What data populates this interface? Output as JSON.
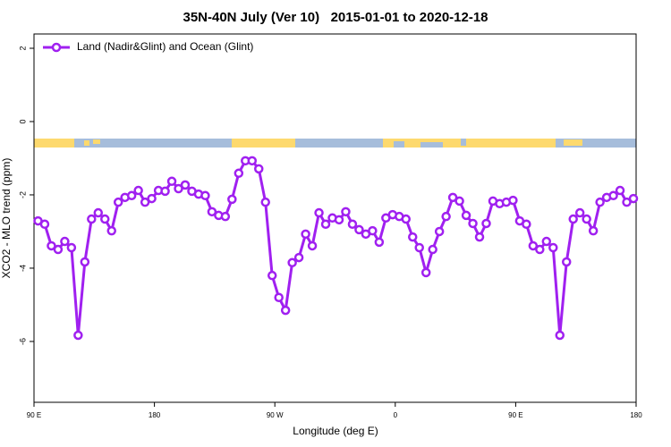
{
  "chart_data": {
    "type": "line",
    "title": "35N-40N July (Ver 10)   2015-01-01 to 2020-12-18",
    "xlabel": "Longitude (deg E)",
    "ylabel": "XCO2 - MLO trend (ppm)",
    "legend": "top-left",
    "xlim": [
      90,
      540
    ],
    "xticks": [
      {
        "value": 90,
        "label": "90 E"
      },
      180,
      {
        "value": 270,
        "label": "90 W"
      },
      {
        "value": 360,
        "label": "0"
      },
      {
        "value": 450,
        "label": "90 E"
      },
      {
        "value": 540,
        "label": "180"
      }
    ],
    "ylim": [
      -7.66,
      2.39
    ],
    "yticks": [
      -6,
      -4,
      -2,
      0,
      2
    ],
    "x": [
      93,
      98,
      103,
      108,
      113,
      118,
      123,
      128,
      133,
      138,
      143,
      148,
      153,
      158,
      163,
      168,
      173,
      178,
      183,
      188,
      193,
      198,
      203,
      208,
      213,
      218,
      223,
      228,
      233,
      238,
      243,
      248,
      253,
      258,
      263,
      268,
      273,
      278,
      283,
      288,
      293,
      298,
      303,
      308,
      313,
      318,
      323,
      328,
      333,
      338,
      343,
      348,
      353,
      358,
      363,
      368,
      373,
      378,
      383,
      388,
      393,
      398,
      403,
      408,
      413,
      418,
      423,
      428,
      433,
      438,
      443,
      448,
      453,
      458,
      463,
      468,
      473,
      478,
      483,
      488,
      493,
      498,
      503,
      508,
      513,
      518,
      523,
      528,
      533,
      538
    ],
    "series": [
      {
        "name": "Land (Nadir&Glint) and Ocean (Glint)",
        "color": "#a020f0",
        "values": [
          -2.71,
          -2.8,
          -3.39,
          -3.49,
          -3.27,
          -3.44,
          -5.83,
          -3.83,
          -2.66,
          -2.49,
          -2.66,
          -2.98,
          -2.2,
          -2.07,
          -2.02,
          -1.88,
          -2.2,
          -2.1,
          -1.88,
          -1.9,
          -1.63,
          -1.83,
          -1.73,
          -1.9,
          -1.98,
          -2.02,
          -2.46,
          -2.56,
          -2.59,
          -2.12,
          -1.41,
          -1.07,
          -1.07,
          -1.29,
          -2.2,
          -4.2,
          -4.8,
          -5.15,
          -3.85,
          -3.71,
          -3.07,
          -3.39,
          -2.49,
          -2.8,
          -2.63,
          -2.68,
          -2.46,
          -2.8,
          -2.95,
          -3.07,
          -2.98,
          -3.29,
          -2.63,
          -2.54,
          -2.59,
          -2.66,
          -3.15,
          -3.44,
          -4.12,
          -3.49,
          -3.0,
          -2.59,
          -2.07,
          -2.17,
          -2.56,
          -2.78,
          -3.15,
          -2.78,
          -2.17,
          -2.24,
          -2.2,
          -2.15,
          -2.71,
          -2.8,
          -3.39,
          -3.49,
          -3.27,
          -3.44,
          -5.83,
          -3.83,
          -2.66,
          -2.49,
          -2.66,
          -2.98,
          -2.2,
          -2.07,
          -2.02,
          -1.88,
          -2.2,
          -2.1
        ]
      }
    ]
  }
}
